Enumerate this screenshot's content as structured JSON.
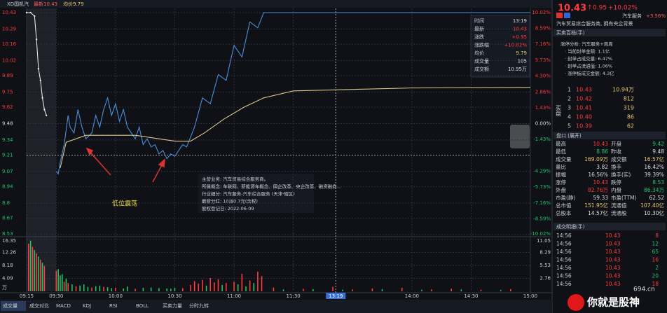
{
  "chart_data": [
    {
      "type": "line",
      "reference_price": 9.48,
      "ylim": [
        8.53,
        10.43
      ],
      "yticks": [
        10.43,
        10.29,
        10.16,
        10.02,
        9.89,
        9.75,
        9.62,
        9.48,
        9.34,
        9.21,
        9.07,
        8.94,
        8.8,
        8.67,
        8.53
      ],
      "y2lim": [
        -10.02,
        10.02
      ],
      "y2ticks": [
        {
          "value": 10.02,
          "label": "10.02%"
        },
        {
          "value": 8.59,
          "label": "8.59%"
        },
        {
          "value": 7.16,
          "label": "7.16%"
        },
        {
          "value": 5.73,
          "label": "5.73%"
        },
        {
          "value": 4.3,
          "label": "4.30%"
        },
        {
          "value": 2.86,
          "label": "2.86%"
        },
        {
          "value": 1.43,
          "label": "1.43%"
        },
        {
          "value": 0,
          "label": "0.00%"
        },
        {
          "value": -1.43,
          "label": "-1.43%"
        },
        {
          "value": -4.29,
          "label": "-4.29%"
        },
        {
          "value": -5.73,
          "label": "-5.73%"
        },
        {
          "value": -7.16,
          "label": "-7.16%"
        },
        {
          "value": -8.59,
          "label": "-8.59%"
        },
        {
          "value": -10.02,
          "label": "-10.02%"
        }
      ],
      "xlim": [
        -15,
        240
      ],
      "xticks": [
        {
          "value": -15,
          "label": "09:15"
        },
        {
          "value": 0,
          "label": "09:30"
        },
        {
          "value": 30,
          "label": "10:00"
        },
        {
          "value": 60,
          "label": "10:30"
        },
        {
          "value": 90,
          "label": "11:00"
        },
        {
          "value": 120,
          "label": "11:30"
        },
        {
          "value": 180,
          "label": "14:00"
        },
        {
          "value": 210,
          "label": "14:30"
        },
        {
          "value": 240,
          "label": "15:00"
        }
      ],
      "series": [
        {
          "name": "集合竞价",
          "color": "#e8e8e8",
          "x": [
            -15,
            -13,
            -11,
            -10,
            -9,
            -8,
            -7,
            -6,
            -5
          ],
          "values": [
            10.43,
            10.43,
            10.4,
            10.2,
            9.95,
            9.85,
            9.7,
            9.6,
            9.55
          ]
        },
        {
          "name": "价格",
          "color": "#4a8fd8",
          "x": [
            0,
            1,
            2,
            4,
            6,
            7,
            9,
            11,
            13,
            15,
            18,
            20,
            22,
            24,
            26,
            28,
            30,
            32,
            34,
            36,
            38,
            40,
            42,
            44,
            46,
            48,
            50,
            52,
            54,
            56,
            58,
            60,
            62,
            64,
            66,
            70,
            74,
            78,
            82,
            86,
            90,
            94,
            98,
            102,
            105,
            240
          ],
          "values": [
            9.07,
            9.05,
            9.15,
            9.3,
            9.55,
            9.45,
            9.4,
            9.6,
            9.45,
            9.35,
            9.4,
            9.55,
            9.45,
            9.6,
            9.7,
            9.55,
            9.65,
            9.5,
            9.6,
            9.45,
            9.4,
            9.35,
            9.45,
            9.3,
            9.35,
            9.28,
            9.3,
            9.22,
            9.25,
            9.18,
            9.22,
            9.2,
            9.25,
            9.3,
            9.28,
            9.45,
            9.7,
            9.65,
            9.9,
            9.85,
            10.15,
            10.05,
            10.35,
            10.3,
            10.43,
            10.43
          ]
        },
        {
          "name": "均价",
          "color": "#d9c68c",
          "x": [
            2,
            5,
            15,
            40,
            60,
            68,
            75,
            85,
            95,
            105,
            120,
            180,
            240
          ],
          "values": [
            9.1,
            9.32,
            9.38,
            9.38,
            9.33,
            9.33,
            9.4,
            9.52,
            9.62,
            9.7,
            9.76,
            9.785,
            9.79
          ]
        }
      ],
      "crosshair": {
        "time": "13:19"
      },
      "info": {
        "rows": [
          [
            "时间",
            "13:19"
          ],
          [
            "最新",
            "10.43"
          ],
          [
            "涨跌",
            "+0.95"
          ],
          [
            "涨跌幅",
            "+10.02%"
          ],
          [
            "均价",
            "9.79"
          ],
          [
            "成交量",
            "105"
          ],
          [
            "成交额",
            "10.95万"
          ]
        ]
      },
      "annotation": "低位震荡"
    },
    {
      "type": "bar",
      "unit": "万",
      "ylim": [
        0,
        16.35
      ],
      "yticks": [
        4.09,
        8.18,
        12.26,
        16.35
      ],
      "y2lim": [
        0,
        11.05
      ],
      "y2ticks": [
        2.76,
        5.53,
        8.29,
        11.05
      ],
      "series": [
        {
          "name": "上涨",
          "color": "#ff3b3b",
          "x": [
            -14,
            -12,
            -10,
            -8,
            -6,
            0,
            4,
            6,
            10,
            18,
            24,
            30,
            40,
            64,
            68,
            70,
            72,
            74,
            78,
            80,
            82,
            86,
            90,
            94,
            98,
            102,
            104,
            110,
            125,
            140,
            150,
            160,
            175,
            190,
            200,
            215,
            230
          ],
          "values": [
            15,
            14,
            12,
            10,
            8,
            6.5,
            3,
            2.6,
            1.6,
            1.2,
            1.4,
            1.1,
            0.8,
            1,
            2,
            3.2,
            2.4,
            3.6,
            4.2,
            2.8,
            3.8,
            2.6,
            3,
            5.5,
            3.4,
            6.2,
            4.8,
            1.2,
            0.8,
            1.4,
            0.6,
            0.9,
            1.1,
            0.6,
            0.8,
            0.5,
            0.7
          ]
        },
        {
          "name": "下跌",
          "color": "#1fc46a",
          "x": [
            -13,
            -11,
            -9,
            -7,
            1,
            2,
            3,
            5,
            8,
            12,
            14,
            16,
            20,
            22,
            26,
            28,
            34,
            36,
            44,
            48,
            52,
            56,
            58,
            60,
            76,
            84,
            92,
            96,
            100,
            115,
            130,
            145,
            165,
            185,
            205,
            225
          ],
          "values": [
            16,
            13,
            11,
            9,
            7,
            5,
            5.4,
            4,
            2.2,
            1.8,
            2.2,
            1.4,
            1.6,
            1.8,
            1.3,
            1,
            0.9,
            1.5,
            1.1,
            1.2,
            1,
            0.9,
            0.8,
            1.1,
            1.8,
            2,
            2.2,
            1.5,
            2.6,
            0.6,
            0.7,
            0.5,
            0.7,
            0.5,
            0.6,
            0.4
          ]
        }
      ]
    }
  ],
  "toolbar": {
    "name": "XD国机汽",
    "latest": "最新10.43",
    "avg": "均价9.79"
  },
  "company": {
    "lines": [
      "主营业务: 汽车贸易综合服务商。",
      "所属概念: 车联网、新能源车概念、国企改革、央企改革、融资融券...",
      "行业细分: 汽车服务-汽车综合服务 (天津·辖区)",
      "最新分红: 10派0.7元(含税)",
      "股权登记日: 2022-06-09"
    ]
  },
  "panel": {
    "price": "10.43",
    "change": "0.95",
    "pct": "+10.02%",
    "sector": "汽车服务",
    "sector_pct": "+3.56%",
    "desc": "汽车贸易综合服务商, 拥有央企背景",
    "tab": "买卖百档(手)",
    "limit_lines": [
      "涨停分析: 汽车服务+周周",
      "· 当前封单金额: 1.1亿",
      "· 封单占成交量: 6.47%",
      "· 封单占流通值: 1.06%",
      "· 涨停板成交金额: 4.3亿"
    ],
    "bid_label": "买盘",
    "bids": [
      [
        "1",
        "10.43",
        "10.94万"
      ],
      [
        "2",
        "10.42",
        "812"
      ],
      [
        "3",
        "10.41",
        "319"
      ],
      [
        "4",
        "10.40",
        "86"
      ],
      [
        "5",
        "10.39",
        "62"
      ]
    ],
    "quote_title": "盘口 (展开)",
    "quote": [
      [
        "最高",
        "10.43",
        "开盘",
        "9.42"
      ],
      [
        "最低",
        "8.86",
        "昨收",
        "9.48"
      ],
      [
        "成交量",
        "169.09万",
        "成交额",
        "16.57亿"
      ],
      [
        "量比",
        "3.82",
        "换手",
        "16.42%"
      ],
      [
        "振幅",
        "16.56%",
        "换手(实)",
        "39.39%"
      ],
      [
        "涨停",
        "10.43",
        "跌停",
        "8.53"
      ],
      [
        "外盘",
        "82.76万",
        "内盘",
        "86.34万"
      ],
      [
        "市盈(静)",
        "59.33",
        "市盈(TTM)",
        "62.52"
      ],
      [
        "总市值",
        "151.95亿",
        "流通值",
        "107.40亿"
      ],
      [
        "总股本",
        "14.57亿",
        "流通股",
        "10.30亿"
      ]
    ],
    "trades_title": "成交明细(手)",
    "trades": [
      [
        "14:56",
        "10.43",
        "8"
      ],
      [
        "14:56",
        "10.43",
        "12"
      ],
      [
        "14:56",
        "10.43",
        "65"
      ],
      [
        "14:56",
        "10.43",
        "16"
      ],
      [
        "14:56",
        "10.43",
        "2"
      ],
      [
        "14:56",
        "10.43",
        "20"
      ],
      [
        "14:56",
        "10.43",
        "18"
      ]
    ]
  },
  "tabs": [
    "成交量",
    "成交对比",
    "MACD",
    "KDJ",
    "RSI",
    "BOLL",
    "买卖力量",
    "分时九转"
  ],
  "watermark": {
    "site": "694.cn",
    "slogan": "你就是股神"
  }
}
